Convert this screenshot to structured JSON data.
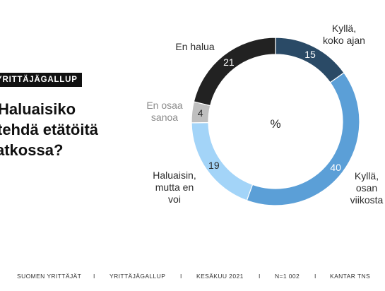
{
  "badge": "YRITTÄJÄGALLUP",
  "title_lines": [
    "Haluaisiko",
    "tehdä etätöitä",
    "atkossa?"
  ],
  "chart_data": {
    "type": "pie",
    "donut": true,
    "center_label": "%",
    "slices": [
      {
        "label_lines": [
          "Kyllä,",
          "koko ajan"
        ],
        "value": 15,
        "color": "#2a4a66"
      },
      {
        "label_lines": [
          "Kyllä,",
          "osan",
          "viikosta"
        ],
        "value": 40,
        "color": "#5b9fd7"
      },
      {
        "label_lines": [
          "Haluaisin,",
          "mutta en",
          "voi"
        ],
        "value": 19,
        "color": "#a3d4f8"
      },
      {
        "label_lines": [
          "En osaa",
          "sanoa"
        ],
        "value": 4,
        "color": "#bfbfbf"
      },
      {
        "label_lines": [
          "En halua"
        ],
        "value": 21,
        "color": "#222222"
      }
    ]
  },
  "footer": {
    "items": [
      "SUOMEN YRITTÄJÄT",
      "YRITTÄJÄGALLUP",
      "KESÄKUU 2021",
      "N=1 002",
      "KANTAR TNS"
    ],
    "separator": "I"
  }
}
